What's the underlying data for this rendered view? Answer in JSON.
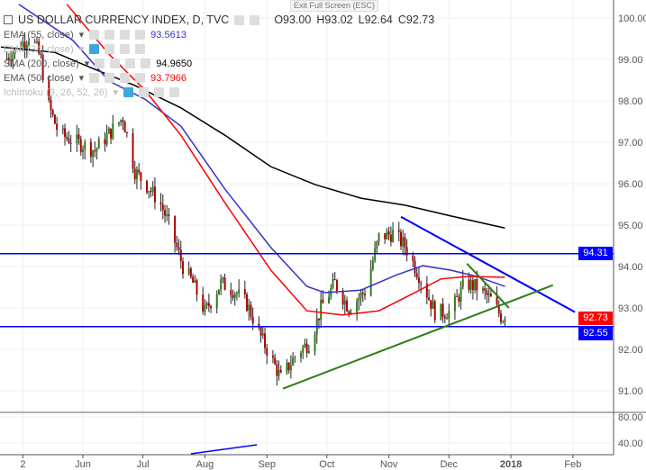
{
  "header": {
    "symbol": "US DOLLAR CURRENCY INDEX, D, TVC",
    "open": "O93.00",
    "high": "H93.02",
    "low": "L92.64",
    "close": "C92.73",
    "tooltip": "Exit Full Screen (ESC)"
  },
  "indicators": [
    {
      "name": "EMA (55, close)",
      "value": "93.5613",
      "color": "#3333cc",
      "visible": true
    },
    {
      "name": "EMA (34, close)",
      "value": "",
      "color": "#bbbbbb",
      "visible": false
    },
    {
      "name": "SMA (200, close)",
      "value": "94.9650",
      "color": "#000000",
      "visible": true
    },
    {
      "name": "EMA (50, close)",
      "value": "93.7966",
      "color": "#ff0000",
      "visible": true
    },
    {
      "name": "Ichimoku (9, 26, 52, 26)",
      "value": "",
      "color": "#bbbbbb",
      "visible": false
    }
  ],
  "chart_data": {
    "type": "candlestick",
    "year": 2017,
    "ylim": [
      90.5,
      100.4
    ],
    "y_ticks": [
      "100.00",
      "99.00",
      "98.00",
      "97.00",
      "96.00",
      "95.00",
      "94.00",
      "93.00",
      "92.00",
      "91.00"
    ],
    "x_ticks": [
      {
        "label": "2",
        "date": "2017-05-02"
      },
      {
        "label": "Jun",
        "date": "2017-06-01"
      },
      {
        "label": "Jul",
        "date": "2017-07-01"
      },
      {
        "label": "Aug",
        "date": "2017-08-01"
      },
      {
        "label": "Sep",
        "date": "2017-09-01"
      },
      {
        "label": "Oct",
        "date": "2017-10-01"
      },
      {
        "label": "Nov",
        "date": "2017-11-01"
      },
      {
        "label": "Dec",
        "date": "2017-12-01"
      },
      {
        "label": "2018",
        "date": "2018-01-01"
      },
      {
        "label": "Feb",
        "date": "2018-02-01"
      }
    ],
    "closes": [
      [
        "2017-04-23",
        99.0
      ],
      [
        "2017-04-30",
        99.3
      ],
      [
        "2017-05-06",
        99.6
      ],
      [
        "2017-05-11",
        99.0
      ],
      [
        "2017-05-14",
        98.0
      ],
      [
        "2017-05-20",
        97.2
      ],
      [
        "2017-05-29",
        97.0
      ],
      [
        "2017-06-07",
        96.8
      ],
      [
        "2017-06-14",
        97.2
      ],
      [
        "2017-06-21",
        97.6
      ],
      [
        "2017-06-27",
        96.3
      ],
      [
        "2017-07-04",
        95.9
      ],
      [
        "2017-07-10",
        95.5
      ],
      [
        "2017-07-15",
        94.9
      ],
      [
        "2017-07-21",
        94.0
      ],
      [
        "2017-07-26",
        93.6
      ],
      [
        "2017-08-01",
        92.9
      ],
      [
        "2017-08-09",
        93.6
      ],
      [
        "2017-08-16",
        93.4
      ],
      [
        "2017-08-22",
        93.1
      ],
      [
        "2017-08-29",
        92.3
      ],
      [
        "2017-09-05",
        91.6
      ],
      [
        "2017-09-08",
        91.3
      ],
      [
        "2017-09-16",
        91.9
      ],
      [
        "2017-09-23",
        92.2
      ],
      [
        "2017-09-28",
        93.0
      ],
      [
        "2017-10-05",
        93.6
      ],
      [
        "2017-10-12",
        93.0
      ],
      [
        "2017-10-20",
        93.4
      ],
      [
        "2017-10-27",
        94.7
      ],
      [
        "2017-11-03",
        94.8
      ],
      [
        "2017-11-09",
        94.5
      ],
      [
        "2017-11-16",
        93.8
      ],
      [
        "2017-11-24",
        92.9
      ],
      [
        "2017-12-02",
        92.9
      ],
      [
        "2017-12-09",
        93.6
      ],
      [
        "2017-12-15",
        93.5
      ],
      [
        "2017-12-22",
        93.2
      ],
      [
        "2017-12-27",
        92.8
      ],
      [
        "2017-12-29",
        92.73
      ]
    ],
    "last_price": {
      "value": "92.73",
      "color": "#ff0000"
    },
    "ma_lines": [
      {
        "name": "SMA (200, close)",
        "color": "#000000",
        "points": [
          [
            "2017-04-21",
            99.3
          ],
          [
            "2017-05-18",
            99.17
          ],
          [
            "2017-06-05",
            98.8
          ],
          [
            "2017-06-27",
            98.37
          ],
          [
            "2017-07-20",
            97.83
          ],
          [
            "2017-08-11",
            97.17
          ],
          [
            "2017-09-03",
            96.41
          ],
          [
            "2017-09-25",
            95.98
          ],
          [
            "2017-10-18",
            95.65
          ],
          [
            "2017-11-09",
            95.48
          ],
          [
            "2017-12-02",
            95.22
          ],
          [
            "2017-12-29",
            94.93
          ]
        ]
      },
      {
        "name": "EMA (55, close)",
        "color": "#3333cc",
        "points": [
          [
            "2017-04-30",
            100.33
          ],
          [
            "2017-05-27",
            99.46
          ],
          [
            "2017-06-14",
            98.48
          ],
          [
            "2017-07-02",
            98.04
          ],
          [
            "2017-07-20",
            97.39
          ],
          [
            "2017-08-11",
            95.87
          ],
          [
            "2017-09-03",
            94.46
          ],
          [
            "2017-09-21",
            93.52
          ],
          [
            "2017-09-30",
            93.37
          ],
          [
            "2017-10-18",
            93.43
          ],
          [
            "2017-11-05",
            93.8
          ],
          [
            "2017-11-18",
            94.02
          ],
          [
            "2017-12-02",
            93.91
          ],
          [
            "2017-12-15",
            93.76
          ],
          [
            "2017-12-29",
            93.52
          ]
        ]
      },
      {
        "name": "EMA (50, close)",
        "color": "#ff0000",
        "points": [
          [
            "2017-05-24",
            100.33
          ],
          [
            "2017-06-14",
            99.13
          ],
          [
            "2017-07-02",
            98.26
          ],
          [
            "2017-07-20",
            97.17
          ],
          [
            "2017-08-11",
            95.54
          ],
          [
            "2017-09-03",
            93.91
          ],
          [
            "2017-09-21",
            92.93
          ],
          [
            "2017-10-09",
            92.83
          ],
          [
            "2017-10-27",
            92.93
          ],
          [
            "2017-11-14",
            93.37
          ],
          [
            "2017-11-27",
            93.7
          ],
          [
            "2017-12-11",
            93.76
          ],
          [
            "2017-12-29",
            93.74
          ]
        ]
      }
    ],
    "horizontal_lines": [
      {
        "value": 94.31,
        "label": "94.31",
        "color": "#0000ff"
      },
      {
        "value": 92.55,
        "label": "92.55",
        "color": "#0000ff"
      }
    ],
    "trend_lines": [
      {
        "color": "#0000ff",
        "points": [
          [
            "2017-11-07",
            95.2
          ],
          [
            "2018-02-02",
            92.9
          ]
        ]
      },
      {
        "color": "#2e7d16",
        "points": [
          [
            "2017-09-09",
            91.05
          ],
          [
            "2018-01-22",
            93.55
          ]
        ]
      },
      {
        "color": "#2e7d16",
        "points": [
          [
            "2017-12-10",
            94.07
          ],
          [
            "2017-12-31",
            93.0
          ]
        ]
      }
    ],
    "lower_panel": {
      "y_ticks": [
        "80.00",
        "40.00"
      ],
      "line": {
        "color": "#0000ff",
        "points": [
          [
            "2017-07-25",
            23.4
          ],
          [
            "2017-08-27",
            37.2
          ]
        ]
      }
    }
  }
}
